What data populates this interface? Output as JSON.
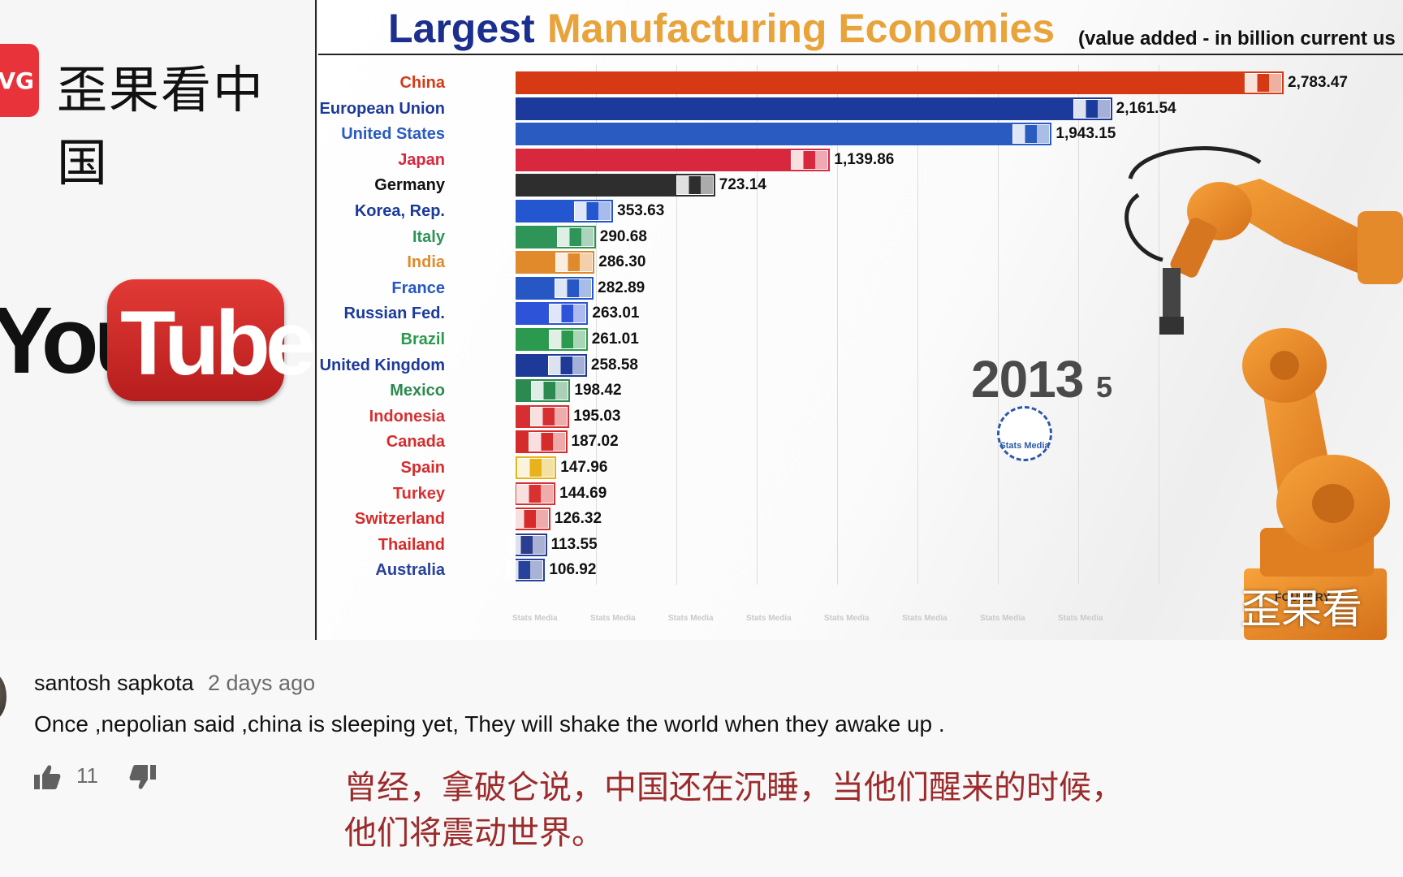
{
  "left_panel": {
    "channel_logo_text": "VG",
    "channel_title": "歪果看中国",
    "youtube_you": "You",
    "youtube_tube": "Tube"
  },
  "chart_header": {
    "title_part1": "Largest",
    "title_part2": "Manufacturing Economies",
    "subtitle": "(value added - in billion current us"
  },
  "chart_data": {
    "type": "bar",
    "orientation": "horizontal",
    "title": "Largest Manufacturing Economies",
    "subtitle": "(value added - in billion current us",
    "year": "2013",
    "year_suffix": "5",
    "categories": [
      "China",
      "European Union",
      "United States",
      "Japan",
      "Germany",
      "Korea, Rep.",
      "Italy",
      "India",
      "France",
      "Russian Fed.",
      "Brazil",
      "United Kingdom",
      "Mexico",
      "Indonesia",
      "Canada",
      "Spain",
      "Turkey",
      "Switzerland",
      "Thailand",
      "Australia"
    ],
    "values": [
      2783.47,
      2161.54,
      1943.15,
      1139.86,
      723.14,
      353.63,
      290.68,
      286.3,
      282.89,
      263.01,
      261.01,
      258.58,
      198.42,
      195.03,
      187.02,
      147.96,
      144.69,
      126.32,
      113.55,
      106.92
    ],
    "value_labels": [
      "2,783.47",
      "2,161.54",
      "1,943.15",
      "1,139.86",
      "723.14",
      "353.63",
      "290.68",
      "286.30",
      "282.89",
      "263.01",
      "261.01",
      "258.58",
      "198.42",
      "195.03",
      "187.02",
      "147.96",
      "144.69",
      "126.32",
      "113.55",
      "106.92"
    ],
    "bar_colors": [
      "#d53a14",
      "#1b3a9b",
      "#2a5bc0",
      "#d8283e",
      "#2e2e2e",
      "#2456cf",
      "#2f9457",
      "#e08a2c",
      "#2757c4",
      "#2d53d8",
      "#2c9a4e",
      "#1e3a98",
      "#2b8a4f",
      "#d72f31",
      "#d52b2b",
      "#e7b21a",
      "#d93030",
      "#d72a2a",
      "#2a3d8f",
      "#27419c"
    ],
    "label_colors": [
      "#d53a14",
      "#1b3a9b",
      "#2a5bc0",
      "#d8283e",
      "#111111",
      "#1b3a9b",
      "#2f9457",
      "#e08a2c",
      "#2757c4",
      "#1b3a9b",
      "#2c9a4e",
      "#1e3a98",
      "#2b8a4f",
      "#d72f31",
      "#d52b2b",
      "#d52b2b",
      "#d93030",
      "#d72a2a",
      "#d72a2a",
      "#27419c"
    ],
    "xlim": [
      0,
      2783.47
    ],
    "grid": true,
    "watermark": "Stats Media"
  },
  "corner_mark": "歪果看",
  "comment": {
    "author": "santosh sapkota",
    "time": "2 days ago",
    "text": "Once ,nepolian said ,china is sleeping yet, They will shake the world when they awake up .",
    "likes": "11",
    "translation_line1": "曾经，拿破仑说，中国还在沉睡，当他们醒来的时候，",
    "translation_line2": "他们将震动世界。"
  },
  "icons": {
    "like": "thumbs-up-icon",
    "dislike": "thumbs-down-icon"
  }
}
